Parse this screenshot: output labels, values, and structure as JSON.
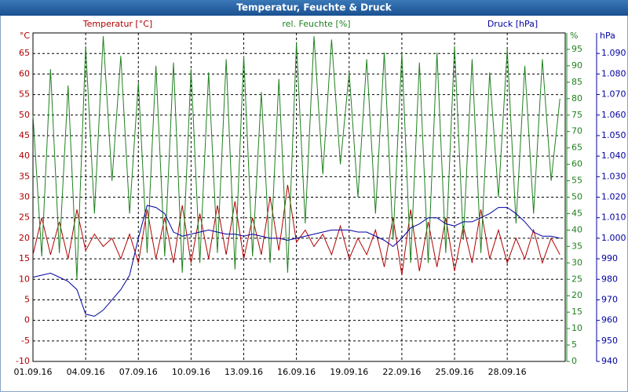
{
  "chart_data": {
    "type": "line",
    "title": "Temperatur, Feuchte & Druck",
    "ylabel": "Temperatur [°C]",
    "yunit": "°C",
    "y2label": "rel. Feuchte [%]",
    "y2unit": "%",
    "y3label": "Druck [hPa]",
    "y3unit": "hPa",
    "grid": true,
    "xlim": [
      0,
      30.3
    ],
    "xticks": [
      {
        "value": 0,
        "label": "01.09.16"
      },
      {
        "value": 3,
        "label": "04.09.16"
      },
      {
        "value": 6,
        "label": "07.09.16"
      },
      {
        "value": 9,
        "label": "10.09.16"
      },
      {
        "value": 12,
        "label": "13.09.16"
      },
      {
        "value": 15,
        "label": "16.09.16"
      },
      {
        "value": 18,
        "label": "19.09.16"
      },
      {
        "value": 21,
        "label": "22.09.16"
      },
      {
        "value": 24,
        "label": "25.09.16"
      },
      {
        "value": 27,
        "label": "28.09.16"
      }
    ],
    "ylim": [
      -10,
      70
    ],
    "yticks": [
      -10,
      -5,
      0,
      5,
      10,
      15,
      20,
      25,
      30,
      35,
      40,
      45,
      50,
      55,
      60,
      65
    ],
    "y2lim": [
      0,
      100
    ],
    "y2ticks": [
      0,
      5,
      10,
      15,
      20,
      25,
      30,
      35,
      40,
      45,
      50,
      55,
      60,
      65,
      70,
      75,
      80,
      85,
      90,
      95
    ],
    "y3lim": [
      940,
      1100
    ],
    "y3ticks": [
      940,
      950,
      960,
      970,
      980,
      990,
      {
        "value": 1000,
        "label": "1.000"
      },
      {
        "value": 1010,
        "label": "1.010"
      },
      {
        "value": 1020,
        "label": "1.020"
      },
      {
        "value": 1030,
        "label": "1.030"
      },
      {
        "value": 1040,
        "label": "1.040"
      },
      {
        "value": 1050,
        "label": "1.050"
      },
      {
        "value": 1060,
        "label": "1.060"
      },
      {
        "value": 1070,
        "label": "1.070"
      },
      {
        "value": 1080,
        "label": "1.080"
      },
      {
        "value": 1090,
        "label": "1.090"
      }
    ],
    "x": [
      0,
      0.5,
      1,
      1.5,
      2,
      2.5,
      3,
      3.5,
      4,
      4.5,
      5,
      5.5,
      6,
      6.5,
      7,
      7.5,
      8,
      8.5,
      9,
      9.5,
      10,
      10.5,
      11,
      11.5,
      12,
      12.5,
      13,
      13.5,
      14,
      14.5,
      15,
      15.5,
      16,
      16.5,
      17,
      17.5,
      18,
      18.5,
      19,
      19.5,
      20,
      20.5,
      21,
      21.5,
      22,
      22.5,
      23,
      23.5,
      24,
      24.5,
      25,
      25.5,
      26,
      26.5,
      27,
      27.5,
      28,
      28.5,
      29,
      29.5,
      30
    ],
    "series": [
      {
        "name": "Temperatur",
        "color": "#b00000",
        "axis": "y",
        "values": [
          16,
          25,
          16,
          24,
          15,
          27,
          17,
          21,
          18,
          20,
          15,
          21,
          14,
          27,
          15,
          25,
          14,
          28,
          14,
          26,
          15,
          28,
          16,
          29,
          15,
          25,
          16,
          30,
          17,
          33,
          19,
          22,
          18,
          21,
          16,
          23,
          15,
          20,
          16,
          22,
          13,
          25,
          11,
          27,
          12,
          24,
          13,
          25,
          12,
          23,
          14,
          27,
          15,
          22,
          14,
          20,
          15,
          22,
          14,
          20,
          16
        ]
      },
      {
        "name": "rel. Feuchte",
        "color": "#208020",
        "axis": "y2",
        "values": [
          75,
          32,
          89,
          33,
          84,
          25,
          96,
          45,
          99,
          55,
          93,
          45,
          85,
          33,
          90,
          32,
          91,
          27,
          89,
          30,
          88,
          33,
          92,
          28,
          93,
          32,
          82,
          30,
          86,
          27,
          97,
          42,
          99,
          57,
          98,
          60,
          88,
          50,
          92,
          45,
          94,
          37,
          94,
          30,
          91,
          30,
          94,
          33,
          96,
          37,
          92,
          33,
          88,
          50,
          95,
          42,
          90,
          45,
          92,
          55,
          80
        ]
      },
      {
        "name": "Druck",
        "color": "#0000a0",
        "axis": "y3",
        "values": [
          981,
          982,
          983,
          981,
          979,
          975,
          963,
          962,
          965,
          970,
          975,
          982,
          1000,
          1016,
          1015,
          1012,
          1003,
          1001,
          1002,
          1003,
          1004,
          1003,
          1002,
          1002,
          1001,
          1002,
          1001,
          1000,
          1000,
          999,
          1000,
          1001,
          1002,
          1003,
          1004,
          1004,
          1004,
          1003,
          1003,
          1001,
          999,
          996,
          1000,
          1005,
          1007,
          1010,
          1010,
          1007,
          1006,
          1008,
          1008,
          1010,
          1012,
          1015,
          1015,
          1012,
          1008,
          1003,
          1001,
          1001,
          1000
        ]
      }
    ]
  }
}
